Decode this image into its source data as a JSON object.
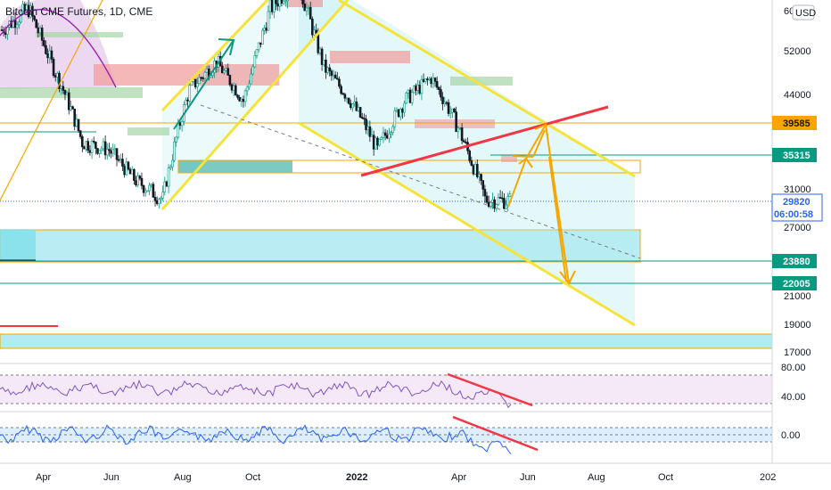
{
  "chart_data": {
    "type": "candlestick",
    "title": "Bitcoin CME Futures, 1D, CME",
    "currency": "USD",
    "y_ticks": [
      52000,
      44000,
      35315,
      31000,
      27000,
      23880,
      22005,
      21000,
      19000,
      17000
    ],
    "y_tick_labels": [
      "52000",
      "44000",
      "31000",
      "27000",
      "21000",
      "19000",
      "17000"
    ],
    "top_cut_label": "60",
    "x_labels": [
      "Apr",
      "Jun",
      "Aug",
      "Oct",
      "2022",
      "Apr",
      "Jun",
      "Aug",
      "Oct",
      "202"
    ],
    "price_levels": [
      {
        "value": 39585,
        "label": "39585",
        "color": "#f7a600",
        "style": "orange-tag"
      },
      {
        "value": 35315,
        "label": "35315",
        "color": "#089981",
        "style": "teal-tag"
      },
      {
        "value": 23880,
        "label": "23880",
        "color": "#089981",
        "style": "teal-tag"
      },
      {
        "value": 22005,
        "label": "22005",
        "color": "#089981",
        "style": "teal-tag"
      }
    ],
    "last_price": {
      "value": 29820,
      "label": "29820",
      "countdown": "06:00:58",
      "color": "#2962ff"
    },
    "candles_approx": [
      {
        "date": "2021-03-10",
        "close": 56000
      },
      {
        "date": "2021-04-10",
        "close": 60000
      },
      {
        "date": "2021-05-10",
        "close": 48000
      },
      {
        "date": "2021-05-20",
        "close": 37000
      },
      {
        "date": "2021-06-10",
        "close": 36000
      },
      {
        "date": "2021-06-25",
        "close": 32000
      },
      {
        "date": "2021-07-20",
        "close": 30000
      },
      {
        "date": "2021-08-10",
        "close": 45000
      },
      {
        "date": "2021-09-05",
        "close": 50000
      },
      {
        "date": "2021-09-20",
        "close": 43000
      },
      {
        "date": "2021-10-15",
        "close": 60000
      },
      {
        "date": "2021-11-10",
        "close": 66000
      },
      {
        "date": "2021-12-05",
        "close": 49000
      },
      {
        "date": "2022-01-05",
        "close": 43000
      },
      {
        "date": "2022-01-25",
        "close": 36000
      },
      {
        "date": "2022-02-15",
        "close": 43000
      },
      {
        "date": "2022-03-28",
        "close": 47000
      },
      {
        "date": "2022-04-25",
        "close": 39000
      },
      {
        "date": "2022-05-10",
        "close": 30000
      },
      {
        "date": "2022-05-20",
        "close": 29820
      }
    ],
    "rsi": {
      "label": "80.00",
      "label_low": "40.00"
    },
    "oscillator": {
      "label": "0.00"
    }
  }
}
